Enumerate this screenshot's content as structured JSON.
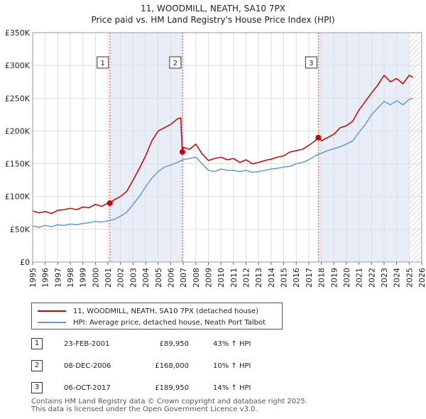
{
  "header": {
    "title": "11, WOODMILL, NEATH, SA10 7PX",
    "subtitle": "Price paid vs. HM Land Registry's House Price Index (HPI)"
  },
  "chart_data": {
    "type": "line",
    "title": "11, WOODMILL, NEATH, SA10 7PX",
    "subtitle": "Price paid vs. HM Land Registry's House Price Index (HPI)",
    "xlabel": "",
    "ylabel": "",
    "xlim": [
      1995,
      2026
    ],
    "ylim": [
      0,
      350000
    ],
    "y_ticks": [
      0,
      50000,
      100000,
      150000,
      200000,
      250000,
      300000,
      350000
    ],
    "y_tick_labels": [
      "£0",
      "£50K",
      "£100K",
      "£150K",
      "£200K",
      "£250K",
      "£300K",
      "£350K"
    ],
    "x_ticks": [
      1995,
      1996,
      1997,
      1998,
      1999,
      2000,
      2001,
      2002,
      2003,
      2004,
      2005,
      2006,
      2007,
      2008,
      2009,
      2010,
      2011,
      2012,
      2013,
      2014,
      2015,
      2016,
      2017,
      2018,
      2019,
      2020,
      2021,
      2022,
      2023,
      2024,
      2025,
      2026
    ],
    "x_tick_labels": [
      "1995",
      "1996",
      "1997",
      "1998",
      "1999",
      "2000",
      "2001",
      "2002",
      "2003",
      "2004",
      "2005",
      "2006",
      "2007",
      "2008",
      "2009",
      "2010",
      "2011",
      "2012",
      "2013",
      "2014",
      "2015",
      "2016",
      "2017",
      "2018",
      "2019",
      "2020",
      "2021",
      "2022",
      "2023",
      "2024",
      "2025",
      "2026"
    ],
    "grid": true,
    "shaded_ranges": [
      [
        2001.15,
        2006.93
      ],
      [
        2017.76,
        2025.0
      ]
    ],
    "hatched_from": 2025.0,
    "series": [
      {
        "name": "11, WOODMILL, NEATH, SA10 7PX (detached house)",
        "color": "#cc0000",
        "x": [
          1995.0,
          1995.5,
          1996.0,
          1996.5,
          1997.0,
          1997.5,
          1998.0,
          1998.5,
          1999.0,
          1999.5,
          2000.0,
          2000.5,
          2001.0,
          2001.15,
          2001.5,
          2002.0,
          2002.5,
          2003.0,
          2003.5,
          2004.0,
          2004.5,
          2005.0,
          2005.5,
          2006.0,
          2006.5,
          2006.8,
          2006.92,
          2007.0,
          2007.5,
          2008.0,
          2008.5,
          2009.0,
          2009.5,
          2010.0,
          2010.5,
          2011.0,
          2011.5,
          2012.0,
          2012.5,
          2013.0,
          2013.5,
          2014.0,
          2014.5,
          2015.0,
          2015.5,
          2016.0,
          2016.5,
          2017.0,
          2017.5,
          2017.76,
          2018.0,
          2018.5,
          2019.0,
          2019.5,
          2020.0,
          2020.5,
          2021.0,
          2021.5,
          2022.0,
          2022.5,
          2023.0,
          2023.5,
          2024.0,
          2024.5,
          2025.0,
          2025.3
        ],
        "y": [
          78000,
          75000,
          77000,
          74000,
          79000,
          80000,
          82000,
          80000,
          84000,
          83000,
          88000,
          85000,
          90000,
          89950,
          95000,
          100000,
          108000,
          125000,
          143000,
          162000,
          185000,
          200000,
          205000,
          210000,
          218000,
          220000,
          168000,
          175000,
          172000,
          180000,
          165000,
          155000,
          158000,
          160000,
          156000,
          158000,
          152000,
          156000,
          150000,
          152000,
          155000,
          157000,
          160000,
          162000,
          168000,
          170000,
          172000,
          178000,
          185000,
          189950,
          185000,
          190000,
          195000,
          205000,
          208000,
          215000,
          232000,
          245000,
          258000,
          270000,
          285000,
          275000,
          280000,
          272000,
          285000,
          282000
        ]
      },
      {
        "name": "HPI: Average price, detached house, Neath Port Talbot",
        "color": "#6699cc",
        "x": [
          1995.0,
          1995.5,
          1996.0,
          1996.5,
          1997.0,
          1997.5,
          1998.0,
          1998.5,
          1999.0,
          1999.5,
          2000.0,
          2000.5,
          2001.0,
          2001.5,
          2002.0,
          2002.5,
          2003.0,
          2003.5,
          2004.0,
          2004.5,
          2005.0,
          2005.5,
          2006.0,
          2006.5,
          2007.0,
          2007.5,
          2008.0,
          2008.5,
          2009.0,
          2009.5,
          2010.0,
          2010.5,
          2011.0,
          2011.5,
          2012.0,
          2012.5,
          2013.0,
          2013.5,
          2014.0,
          2014.5,
          2015.0,
          2015.5,
          2016.0,
          2016.5,
          2017.0,
          2017.5,
          2018.0,
          2018.5,
          2019.0,
          2019.5,
          2020.0,
          2020.5,
          2021.0,
          2021.5,
          2022.0,
          2022.5,
          2023.0,
          2023.5,
          2024.0,
          2024.5,
          2025.0,
          2025.3
        ],
        "y": [
          55000,
          53000,
          56000,
          54000,
          57000,
          56000,
          58000,
          57000,
          59000,
          60000,
          62000,
          61000,
          63000,
          65000,
          70000,
          76000,
          88000,
          100000,
          115000,
          128000,
          138000,
          145000,
          148000,
          152000,
          156000,
          158000,
          160000,
          150000,
          140000,
          138000,
          142000,
          140000,
          140000,
          138000,
          140000,
          137000,
          138000,
          140000,
          142000,
          143000,
          145000,
          146000,
          150000,
          152000,
          156000,
          162000,
          166000,
          170000,
          173000,
          176000,
          180000,
          185000,
          198000,
          210000,
          225000,
          235000,
          245000,
          240000,
          246000,
          240000,
          248000,
          250000
        ]
      }
    ],
    "sale_markers": [
      {
        "label": "1",
        "x": 2001.15,
        "y": 89950
      },
      {
        "label": "2",
        "x": 2006.93,
        "y": 168000
      },
      {
        "label": "3",
        "x": 2017.76,
        "y": 189950
      }
    ]
  },
  "legend": {
    "items": [
      {
        "label": "11, WOODMILL, NEATH, SA10 7PX (detached house)",
        "color": "#cc0000"
      },
      {
        "label": "HPI: Average price, detached house, Neath Port Talbot",
        "color": "#6699cc"
      }
    ]
  },
  "sales": [
    {
      "num": "1",
      "date": "23-FEB-2001",
      "price": "£89,950",
      "hpi": "43% ↑ HPI"
    },
    {
      "num": "2",
      "date": "08-DEC-2006",
      "price": "£168,000",
      "hpi": "10% ↑ HPI"
    },
    {
      "num": "3",
      "date": "06-OCT-2017",
      "price": "£189,950",
      "hpi": "14% ↑ HPI"
    }
  ],
  "footer": {
    "line1": "Contains HM Land Registry data © Crown copyright and database right 2025.",
    "line2": "This data is licensed under the Open Government Licence v3.0."
  }
}
